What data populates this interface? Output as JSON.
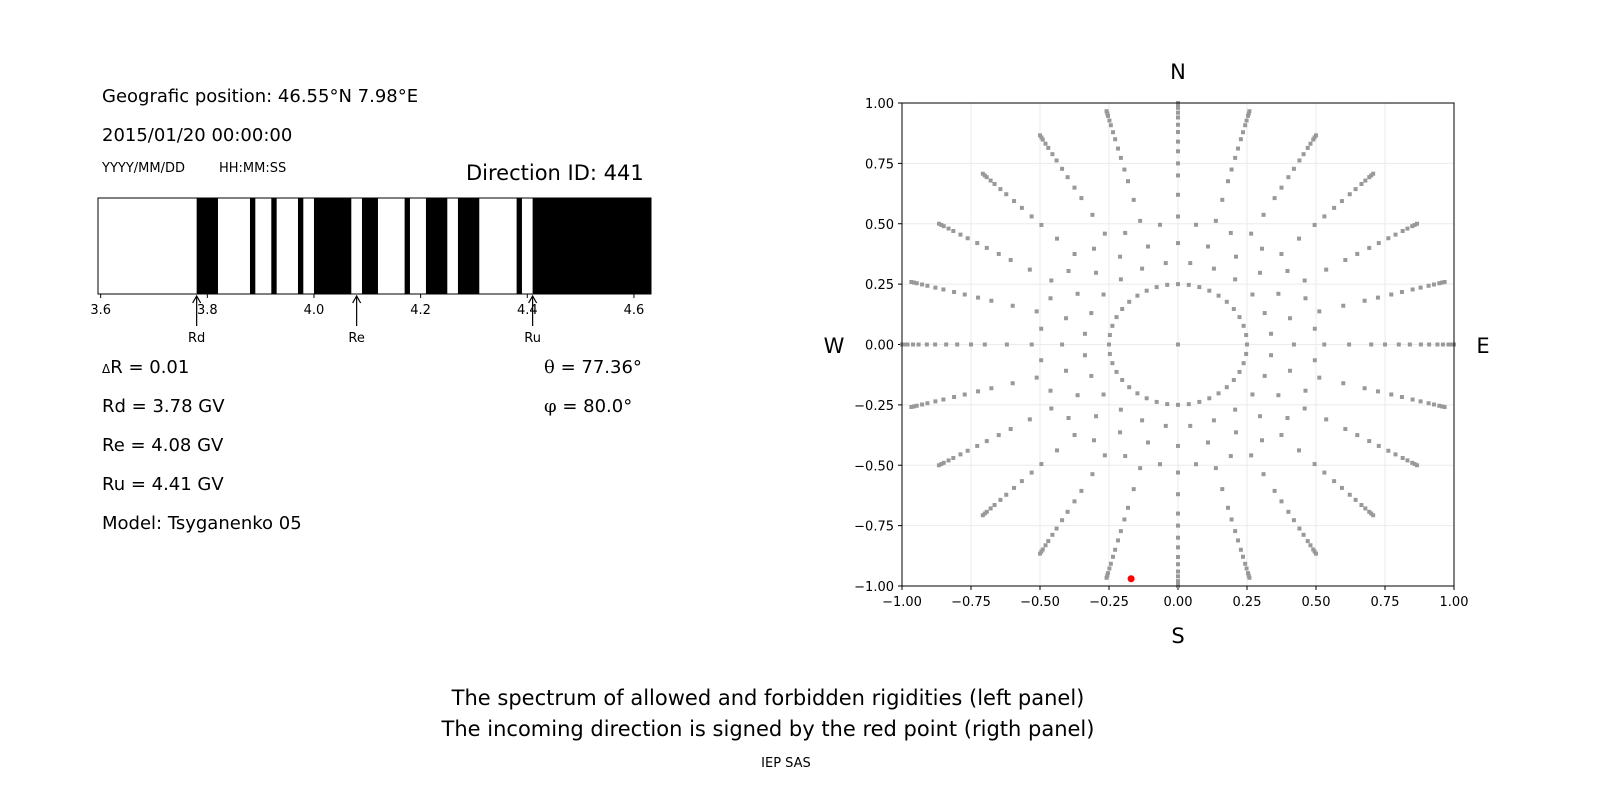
{
  "left_panel": {
    "position": "Geografic position: 46.55°N 7.98°E",
    "datetime": "2015/01/20 00:00:00",
    "date_format": "YYYY/MM/DD",
    "time_format": "HH:MM:SS",
    "direction_id": "Direction ID: 441",
    "delta_symbol": "Δ",
    "delta_r": "R = 0.01",
    "rd": "Rd = 3.78 GV",
    "re": "Re = 4.08 GV",
    "ru": "Ru = 4.41 GV",
    "model": "Model: Tsyganenko 05",
    "theta_symbol": "θ",
    "theta": "= 77.36°",
    "phi_symbol": "φ",
    "phi": "= 80.0°"
  },
  "chart_data": [
    {
      "type": "bar",
      "xlim": [
        3.595,
        4.632
      ],
      "xticks": [
        3.6,
        3.8,
        4.0,
        4.2,
        4.4,
        4.6
      ],
      "xtick_labels": [
        "3.6",
        "3.8",
        "4.0",
        "4.2",
        "4.4",
        "4.6"
      ],
      "forbidden_intervals": [
        [
          3.78,
          3.82
        ],
        [
          3.88,
          3.89
        ],
        [
          3.92,
          3.93
        ],
        [
          3.97,
          3.98
        ],
        [
          4.0,
          4.07
        ],
        [
          4.09,
          4.12
        ],
        [
          4.17,
          4.18
        ],
        [
          4.21,
          4.25
        ],
        [
          4.27,
          4.31
        ],
        [
          4.38,
          4.39
        ],
        [
          4.41,
          4.632
        ]
      ],
      "allowed_color": "#ffffff",
      "forbidden_color": "#000000",
      "markers": [
        {
          "label": "Rd",
          "value": 3.78
        },
        {
          "label": "Re",
          "value": 4.08
        },
        {
          "label": "Ru",
          "value": 4.41
        }
      ]
    },
    {
      "type": "scatter",
      "xlim": [
        -1,
        1
      ],
      "ylim": [
        -1,
        1
      ],
      "ticks": [
        -1.0,
        -0.75,
        -0.5,
        -0.25,
        0.0,
        0.25,
        0.5,
        0.75,
        1.0
      ],
      "tick_labels": [
        "−1.00",
        "−0.75",
        "−0.50",
        "−0.25",
        "0.00",
        "0.25",
        "0.50",
        "0.75",
        "1.00"
      ],
      "grid": true,
      "compass": {
        "north": "N",
        "south": "S",
        "west": "W",
        "east": "E"
      },
      "point_color": "#999999",
      "center_point": [
        0,
        0
      ],
      "inner_ring": {
        "radius": 0.25,
        "count": 40
      },
      "spokes": {
        "count": 24,
        "radii": [
          0.42,
          0.53,
          0.62,
          0.7,
          0.75,
          0.8,
          0.84,
          0.88,
          0.91,
          0.94,
          0.96,
          0.98,
          0.99,
          1.0
        ]
      },
      "incoming_direction": {
        "x": -0.17,
        "y": -0.97,
        "color": "#ff0000"
      }
    }
  ],
  "caption": {
    "line1": "The spectrum of allowed and forbidden rigidities (left panel)",
    "line2": "The incoming direction is signed by the red point (rigth panel)",
    "credit": "IEP SAS"
  }
}
